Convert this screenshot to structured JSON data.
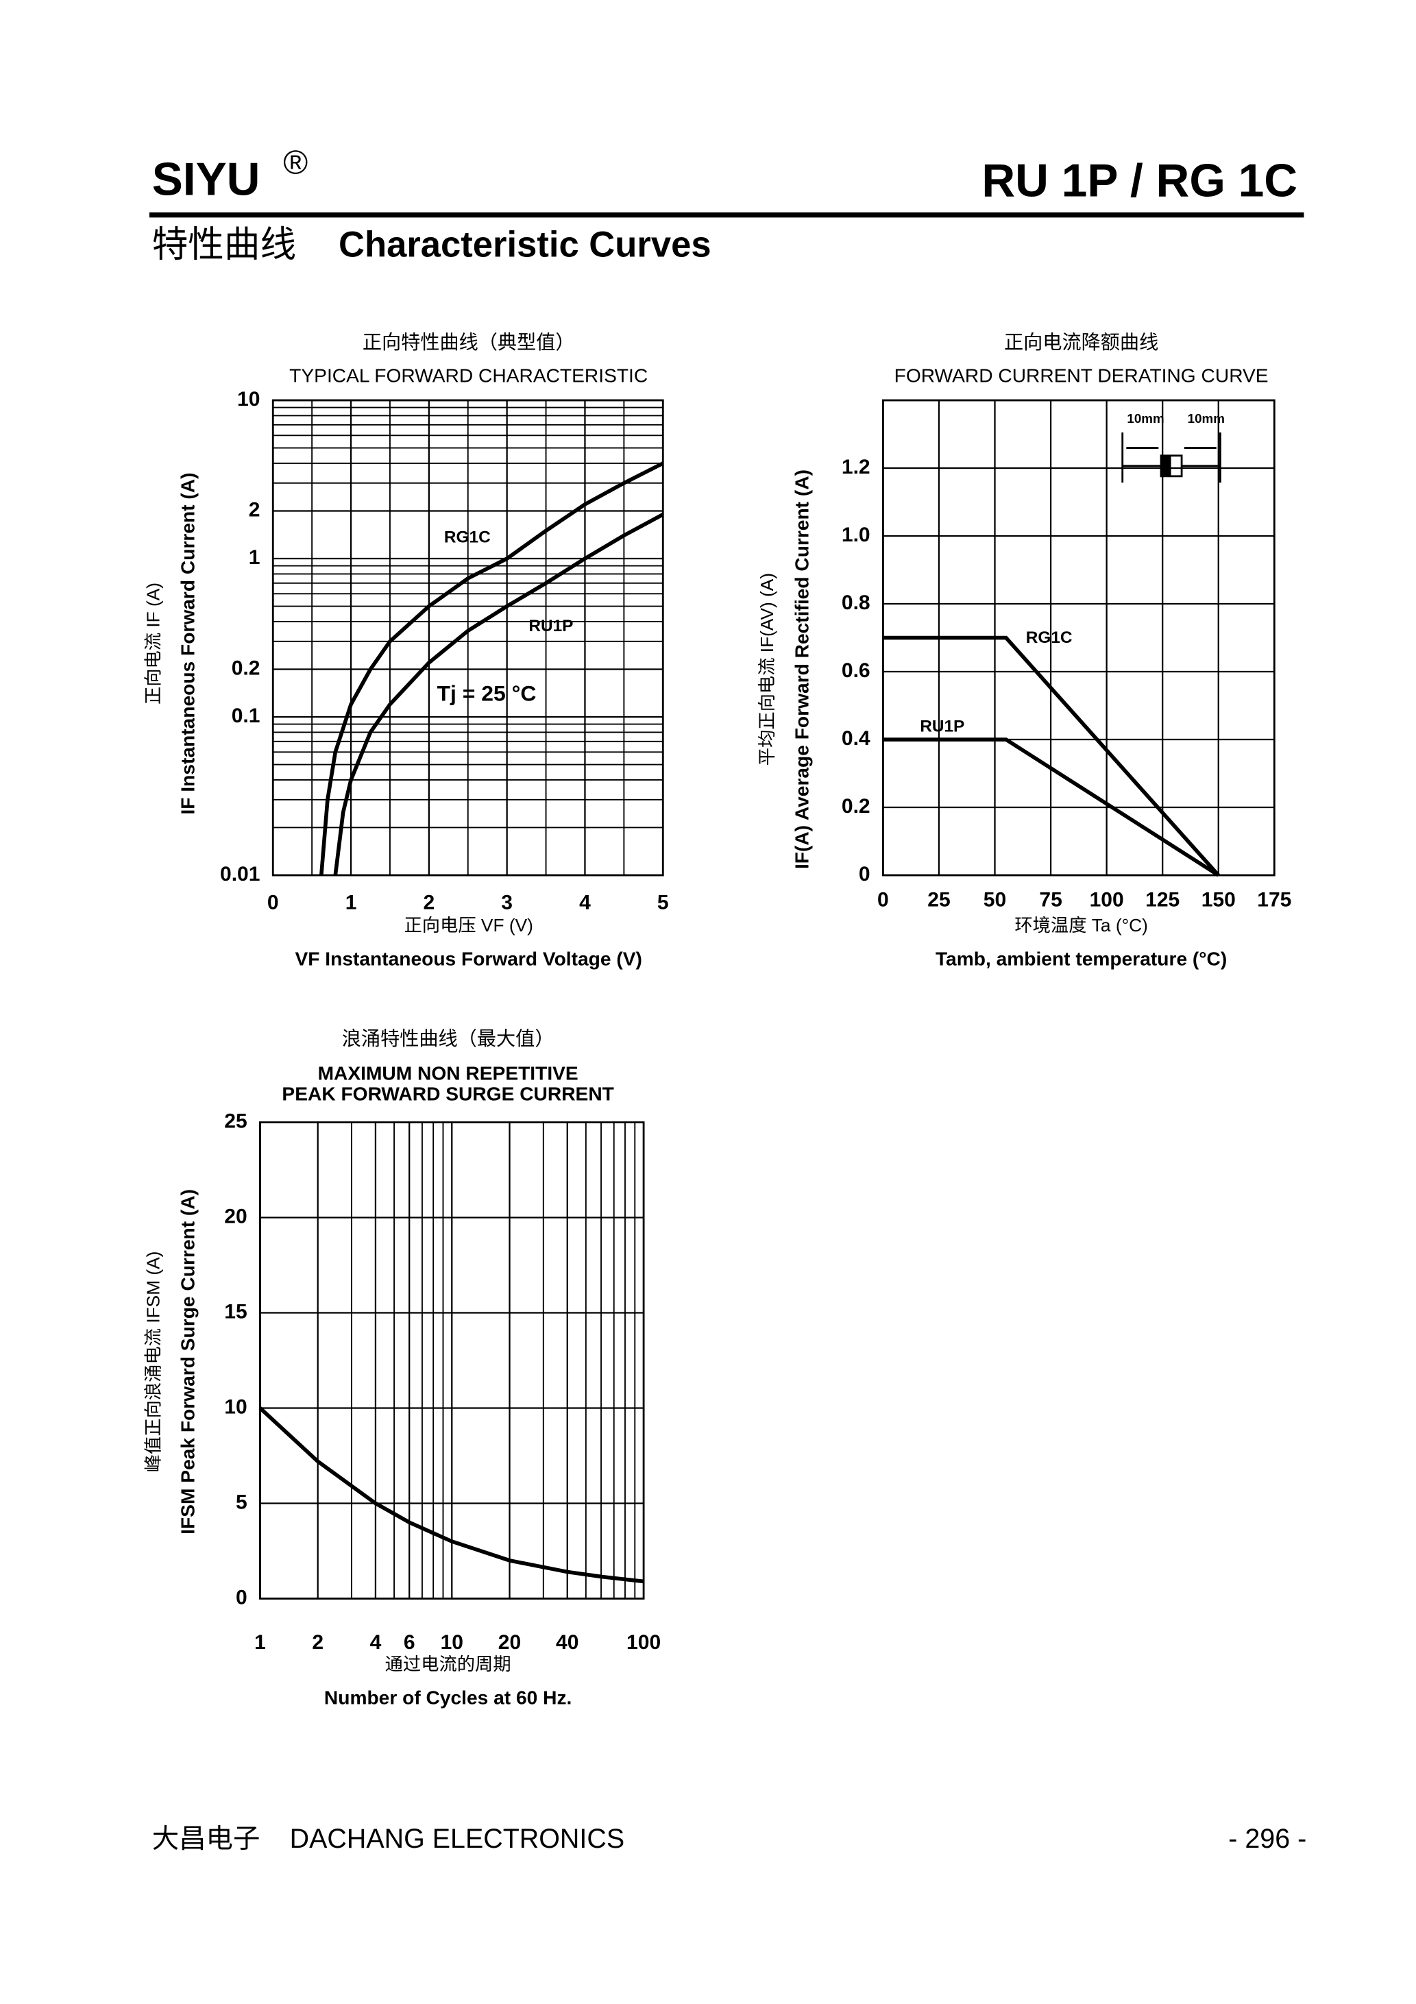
{
  "header": {
    "brand": "SIYU",
    "brand_mark": "®",
    "part": "RU 1P / RG 1C",
    "section_cn": "特性曲线",
    "section_en": "Characteristic Curves"
  },
  "chart_data": [
    {
      "type": "line",
      "title_cn": "正向特性曲线（典型值）",
      "title": "TYPICAL FORWARD CHARACTERISTIC",
      "ylabel_cn": "正向电流   IF (A)",
      "ylabel": "IF Instantaneous Forward Current (A)",
      "xlabel_cn": "正向电压   VF (V)",
      "xlabel": "VF Instantaneous Forward Voltage (V)",
      "annotation": "Tj = 25 °C",
      "xlim": [
        0,
        5
      ],
      "xticks": [
        0,
        1,
        2,
        3,
        4,
        5
      ],
      "ylim": [
        0.01,
        10
      ],
      "yticks": [
        0.01,
        0.1,
        0.2,
        1,
        2,
        10
      ],
      "yscale": "log",
      "xscale": "linear",
      "grid": true,
      "minor_grid": true,
      "series": [
        {
          "name": "RG1C",
          "color": "#000000",
          "x": [
            0.62,
            0.7,
            0.8,
            1.0,
            1.25,
            1.5,
            2.0,
            2.5,
            3.0,
            3.5,
            4.0,
            4.5,
            5.0
          ],
          "values": [
            0.01,
            0.03,
            0.06,
            0.12,
            0.2,
            0.3,
            0.5,
            0.75,
            1.0,
            1.5,
            2.2,
            3.0,
            4.0
          ]
        },
        {
          "name": "RU1P",
          "color": "#000000",
          "x": [
            0.8,
            0.9,
            1.0,
            1.25,
            1.5,
            2.0,
            2.5,
            3.0,
            3.5,
            4.0,
            4.5,
            5.0
          ],
          "values": [
            0.01,
            0.025,
            0.04,
            0.08,
            0.12,
            0.22,
            0.35,
            0.5,
            0.7,
            1.0,
            1.4,
            1.9
          ]
        }
      ]
    },
    {
      "type": "line",
      "title_cn": "正向电流降额曲线",
      "title": "FORWARD CURRENT DERATING CURVE",
      "ylabel_cn": "平均正向电流   IF(AV)  (A)",
      "ylabel": "IF(A)  Average Forward Rectified Current (A)",
      "xlabel_cn": "环境温度  Ta (°C)",
      "xlabel": "Tamb, ambient temperature (°C)",
      "inset_labels": [
        "10mm",
        "10mm"
      ],
      "xlim": [
        0,
        175
      ],
      "xticks": [
        0,
        25,
        50,
        75,
        100,
        125,
        150,
        175
      ],
      "ylim": [
        0,
        1.4
      ],
      "yticks": [
        0,
        0.2,
        0.4,
        0.6,
        0.8,
        {
          "value": 1,
          "label": "1.0"
        },
        1.2
      ],
      "yscale": "linear",
      "xscale": "linear",
      "grid": true,
      "minor_grid": false,
      "series": [
        {
          "name": "RG1C",
          "color": "#000000",
          "x": [
            0,
            55,
            150
          ],
          "values": [
            0.7,
            0.7,
            0
          ]
        },
        {
          "name": "RU1P",
          "color": "#000000",
          "x": [
            0,
            55,
            150
          ],
          "values": [
            0.4,
            0.4,
            0
          ]
        }
      ]
    },
    {
      "type": "line",
      "title_cn": "浪涌特性曲线（最大值）",
      "title": "MAXIMUM NON REPETITIVE",
      "subtitle": "PEAK FORWARD SURGE CURRENT",
      "ylabel_cn": "峰值正向浪涌电流   IFSM (A)",
      "ylabel": "IFSM Peak Forward Surge Current (A)",
      "xlabel_cn": "通过电流的周期",
      "xlabel": "Number  of  Cycles at 60 Hz.",
      "xlim": [
        1,
        100
      ],
      "xticks": [
        1,
        2,
        4,
        6,
        10,
        20,
        40,
        100
      ],
      "ylim": [
        0,
        25
      ],
      "yticks": [
        0,
        5,
        10,
        15,
        20,
        25
      ],
      "yscale": "linear",
      "xscale": "log",
      "grid": true,
      "minor_grid": true,
      "series": [
        {
          "color": "#000000",
          "x": [
            1,
            2,
            4,
            6,
            10,
            20,
            40,
            60,
            100
          ],
          "values": [
            10,
            7.2,
            5,
            4,
            3,
            2,
            1.4,
            1.15,
            0.9
          ]
        }
      ]
    }
  ],
  "footer": {
    "company_cn": "大昌电子",
    "company_en": "DACHANG ELECTRONICS",
    "page": "- 296 -"
  }
}
